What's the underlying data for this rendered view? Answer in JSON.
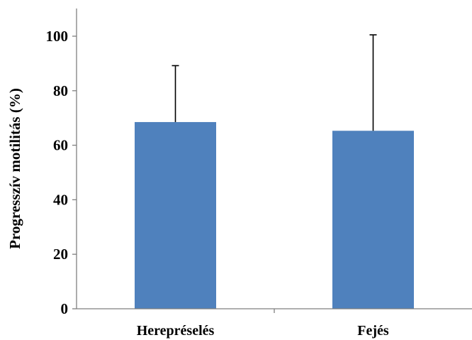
{
  "chart_data": {
    "type": "bar",
    "title": "",
    "xlabel": "",
    "ylabel": "Progresszív motilitás (%)",
    "categories": [
      "Herepréselés",
      "Fejés"
    ],
    "series": [
      {
        "values": [
          68.5,
          65.3
        ],
        "error_upper": [
          20.7,
          35.2
        ],
        "color": "#4f81bd"
      }
    ],
    "ylim": [
      0,
      110
    ],
    "yticks": [
      0,
      20,
      40,
      60,
      80,
      100
    ],
    "grid": false,
    "legend": "none"
  }
}
